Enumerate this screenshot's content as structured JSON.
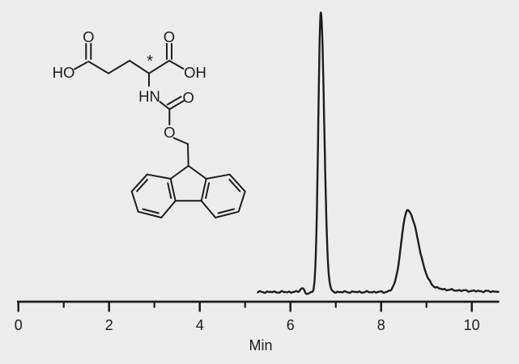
{
  "colors": {
    "background": "#ececec",
    "ink": "#1d1d1d"
  },
  "molecule": {
    "name": "fmoc-glutamic-acid-structure",
    "atom_labels": {
      "o_acid_left": "O",
      "ho_left": "HO",
      "stereocenter_mark": "*",
      "o_acid_right": "O",
      "oh_right": "OH",
      "nh": "HN",
      "o_carbamate_carbonyl": "O",
      "o_ester": "O"
    }
  },
  "chart_data": {
    "type": "line",
    "title": "",
    "xlabel": "Min",
    "ylabel": "",
    "xlim": [
      0,
      10.6
    ],
    "x_major_ticks": [
      0,
      2,
      4,
      6,
      8,
      10
    ],
    "x_minor_ticks": [
      1,
      3,
      5,
      7,
      9
    ],
    "grid": false,
    "legend": null,
    "trace_t_range": [
      5.28,
      10.59
    ],
    "baseline_rel": 0.0,
    "peaks": [
      {
        "retention_min": 6.26,
        "rel_height": 0.0145,
        "sigma_left": 0.045,
        "sigma_right": 0.045,
        "note": "small baseline bump"
      },
      {
        "retention_min": 6.37,
        "rel_height": -0.008,
        "sigma_left": 0.05,
        "sigma_right": 0.05,
        "note": "slight baseline dip"
      },
      {
        "retention_min": 6.67,
        "rel_height": 1.0,
        "sigma_left": 0.055,
        "sigma_right": 0.075,
        "note": "main peak (sharp)"
      },
      {
        "retention_min": 8.58,
        "rel_height": 0.292,
        "sigma_left": 0.135,
        "sigma_right": 0.22,
        "tailing": {
          "rel_height": 0.1,
          "decay_min": 0.7
        },
        "note": "second peak (broad, tailing)"
      }
    ]
  }
}
